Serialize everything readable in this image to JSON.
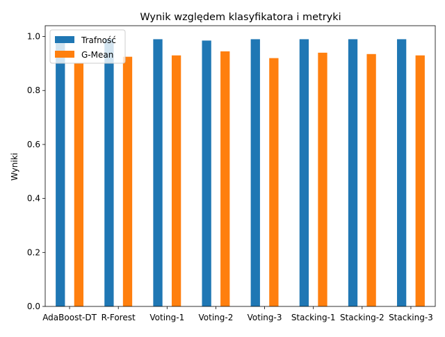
{
  "chart_data": {
    "type": "bar",
    "title": "Wynik względem klasyfikatora i metryki",
    "xlabel": "",
    "ylabel": "Wyniki",
    "ylim": [
      0.0,
      1.04
    ],
    "yticks": [
      "0.0",
      "0.2",
      "0.4",
      "0.6",
      "0.8",
      "1.0"
    ],
    "grid": false,
    "legend_position": "top-left",
    "categories": [
      "AdaBoost-DT",
      "R-Forest",
      "Voting-1",
      "Voting-2",
      "Voting-3",
      "Stacking-1",
      "Stacking-2",
      "Stacking-3"
    ],
    "series": [
      {
        "name": "Trafność",
        "color": "#1f77b4",
        "values": [
          0.99,
          0.99,
          0.99,
          0.985,
          0.99,
          0.99,
          0.99,
          0.99
        ]
      },
      {
        "name": "G-Mean",
        "color": "#ff7f0e",
        "values": [
          0.9,
          0.925,
          0.93,
          0.945,
          0.92,
          0.94,
          0.935,
          0.93
        ]
      }
    ]
  }
}
